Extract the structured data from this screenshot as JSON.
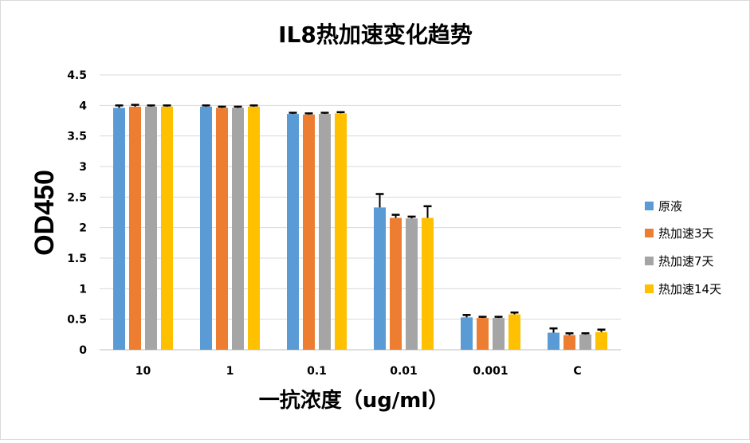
{
  "chart_data": {
    "type": "bar",
    "title": "IL8热加速变化趋势",
    "xlabel": "一抗浓度（ug/ml）",
    "ylabel": "OD450",
    "ylim": [
      0,
      4.5
    ],
    "yticks": [
      "0",
      "0.5",
      "1",
      "1.5",
      "2",
      "2.5",
      "3",
      "3.5",
      "4",
      "4.5"
    ],
    "yticks_values": [
      0,
      0.5,
      1,
      1.5,
      2,
      2.5,
      3,
      3.5,
      4,
      4.5
    ],
    "grid": true,
    "legend_position": "right",
    "categories": [
      "10",
      "1",
      "0.1",
      "0.01",
      "0.001",
      "C"
    ],
    "series": [
      {
        "name": "原液",
        "color": "#5b9bd5",
        "values": [
          3.96,
          3.98,
          3.86,
          2.33,
          0.53,
          0.28
        ],
        "errors": [
          0.04,
          0.02,
          0.02,
          0.22,
          0.04,
          0.07
        ]
      },
      {
        "name": "热加速3天",
        "color": "#ed7d31",
        "values": [
          3.98,
          3.96,
          3.85,
          2.16,
          0.52,
          0.24
        ],
        "errors": [
          0.03,
          0.02,
          0.02,
          0.05,
          0.02,
          0.03
        ]
      },
      {
        "name": "热加速7天",
        "color": "#a5a5a5",
        "values": [
          3.98,
          3.96,
          3.86,
          2.15,
          0.52,
          0.25
        ],
        "errors": [
          0.02,
          0.02,
          0.02,
          0.03,
          0.02,
          0.02
        ]
      },
      {
        "name": "热加速14天",
        "color": "#ffc000",
        "values": [
          3.98,
          3.98,
          3.87,
          2.16,
          0.58,
          0.29
        ],
        "errors": [
          0.02,
          0.02,
          0.02,
          0.19,
          0.03,
          0.04
        ]
      }
    ]
  }
}
